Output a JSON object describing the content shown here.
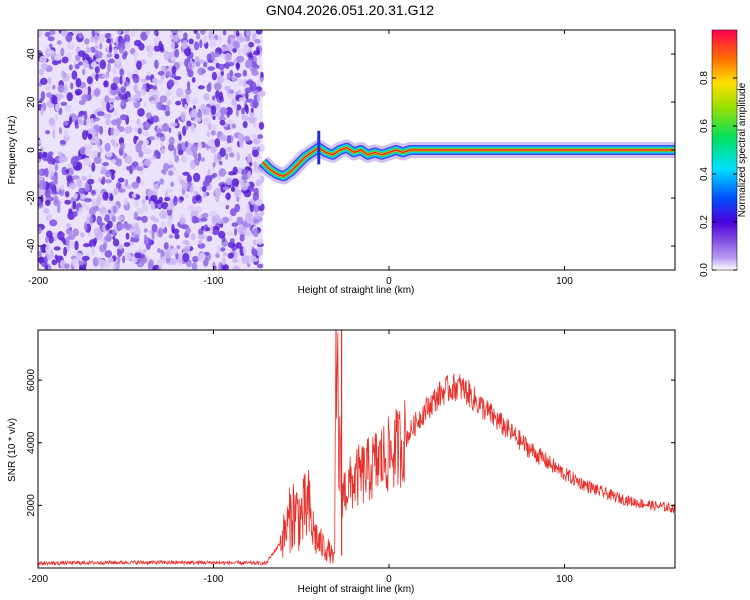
{
  "title": "GN04.2026.051.20.31.G12",
  "chart_data": [
    {
      "type": "heatmap",
      "name": "spectrogram",
      "xlabel": "Height of straight line (km)",
      "ylabel": "Frequency (Hz)",
      "xlim": [
        -200,
        163
      ],
      "ylim": [
        -50,
        50
      ],
      "xticks": [
        -200,
        -100,
        0,
        100
      ],
      "yticks": [
        -40,
        -20,
        0,
        20,
        40
      ],
      "noise_region_x": [
        -200,
        -72
      ],
      "signal_track": {
        "x": [
          -72,
          -68,
          -64,
          -60,
          -56,
          -52,
          -48,
          -44,
          -40,
          -36,
          -32,
          -28,
          -24,
          -20,
          -16,
          -12,
          -8,
          -4,
          0,
          4,
          8,
          12,
          16,
          20,
          163
        ],
        "freq": [
          -5,
          -8,
          -10,
          -11,
          -9,
          -6,
          -3,
          -1,
          1,
          -1,
          -2,
          0,
          1,
          -1,
          0,
          -2,
          -1,
          -2,
          -1,
          0,
          -1,
          0,
          0,
          0,
          0
        ]
      },
      "colorbar": {
        "label": "Normalized spectral amplitude",
        "ticks": [
          "0.0",
          "0.2",
          "0.4",
          "0.6",
          "0.8"
        ],
        "range": [
          0,
          1
        ]
      },
      "grid": false
    },
    {
      "type": "line",
      "name": "snr",
      "xlabel": "Height of straight line (km)",
      "ylabel": "SNR (10 * v/v)",
      "xlim": [
        -200,
        163
      ],
      "ylim": [
        0,
        7600
      ],
      "xticks": [
        -200,
        -100,
        0,
        100
      ],
      "yticks": [
        2000,
        4000,
        6000
      ],
      "color": "#e8302a",
      "series": [
        {
          "x": [
            -200,
            -150,
            -100,
            -70,
            -62,
            -58,
            -55,
            -50,
            -46,
            -44,
            -40,
            -35,
            -31,
            -30,
            -27,
            -23,
            -18,
            -12,
            -6,
            0,
            8,
            15,
            20,
            25,
            30,
            35,
            40,
            45,
            50,
            60,
            70,
            80,
            90,
            100,
            110,
            120,
            130,
            140,
            150,
            163
          ],
          "y": [
            150,
            180,
            170,
            150,
            800,
            1300,
            1800,
            1600,
            2000,
            1300,
            800,
            600,
            300,
            6200,
            2400,
            2600,
            2900,
            3100,
            3400,
            3600,
            4000,
            4600,
            5000,
            5300,
            5600,
            5750,
            5800,
            5600,
            5300,
            4800,
            4300,
            3800,
            3400,
            3000,
            2700,
            2450,
            2250,
            2100,
            2000,
            1900
          ]
        }
      ],
      "grid": false
    }
  ]
}
